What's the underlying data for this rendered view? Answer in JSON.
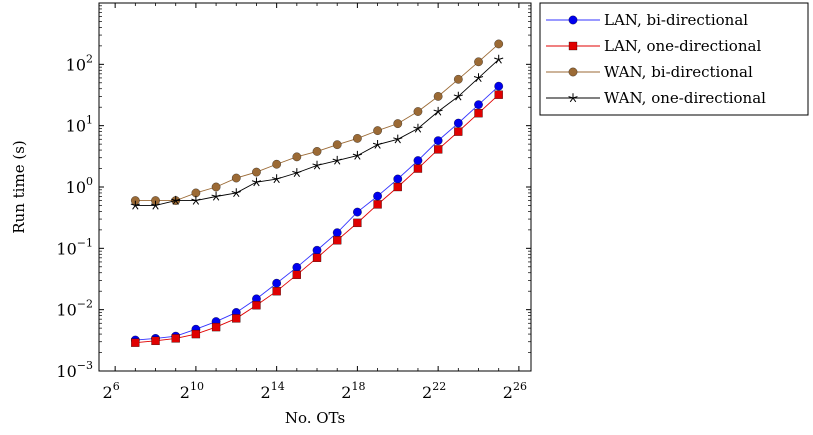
{
  "chart_data": {
    "type": "line",
    "xlabel": "No. OTs",
    "ylabel": "Run time (s)",
    "xscale": "log2",
    "yscale": "log10",
    "xlim": [
      5.2,
      26.6
    ],
    "ylim": [
      0.001,
      1000
    ],
    "x_ticks": [
      {
        "base": "2",
        "exp": "6",
        "value": 64
      },
      {
        "base": "2",
        "exp": "10",
        "value": 1024
      },
      {
        "base": "2",
        "exp": "14",
        "value": 16384
      },
      {
        "base": "2",
        "exp": "18",
        "value": 262144
      },
      {
        "base": "2",
        "exp": "22",
        "value": 4194304
      },
      {
        "base": "2",
        "exp": "26",
        "value": 67108864
      }
    ],
    "y_ticks": [
      {
        "base": "10",
        "exp": "−3",
        "value": 0.001
      },
      {
        "base": "10",
        "exp": "−2",
        "value": 0.01
      },
      {
        "base": "10",
        "exp": "−1",
        "value": 0.1
      },
      {
        "base": "10",
        "exp": "0",
        "value": 1
      },
      {
        "base": "10",
        "exp": "1",
        "value": 10
      },
      {
        "base": "10",
        "exp": "2",
        "value": 100
      }
    ],
    "x": [
      128,
      256,
      512,
      1024,
      2048,
      4096,
      8192,
      16384,
      32768,
      65536,
      131072,
      262144,
      524288,
      1048576,
      2097152,
      4194304,
      8388608,
      16777216,
      33554432
    ],
    "grid": false,
    "legend_position": "outside-right-top",
    "series": [
      {
        "name": "LAN, bi-directional",
        "marker": "circle",
        "color": "#0000ee",
        "values": [
          0.0032,
          0.0034,
          0.0037,
          0.0048,
          0.0064,
          0.009,
          0.015,
          0.027,
          0.049,
          0.093,
          0.18,
          0.39,
          0.71,
          1.35,
          2.7,
          5.7,
          11,
          22,
          44
        ]
      },
      {
        "name": "LAN, one-directional",
        "marker": "square",
        "color": "#e00000",
        "values": [
          0.0029,
          0.0031,
          0.0034,
          0.004,
          0.0052,
          0.0072,
          0.0118,
          0.02,
          0.037,
          0.07,
          0.135,
          0.26,
          0.52,
          1.0,
          2.0,
          4.1,
          8.0,
          16,
          32
        ]
      },
      {
        "name": "WAN, bi-directional",
        "marker": "circle",
        "color": "#9b6a35",
        "values": [
          0.6,
          0.6,
          0.6,
          0.8,
          1.0,
          1.4,
          1.75,
          2.35,
          3.1,
          3.8,
          4.9,
          6.2,
          8.3,
          10.8,
          17,
          30,
          57,
          110,
          215
        ]
      },
      {
        "name": "WAN, one-directional",
        "marker": "star",
        "color": "#000000",
        "values": [
          0.5,
          0.5,
          0.6,
          0.6,
          0.7,
          0.8,
          1.2,
          1.35,
          1.7,
          2.25,
          2.7,
          3.25,
          4.9,
          6.0,
          9.0,
          17,
          30,
          60,
          120
        ]
      }
    ]
  }
}
